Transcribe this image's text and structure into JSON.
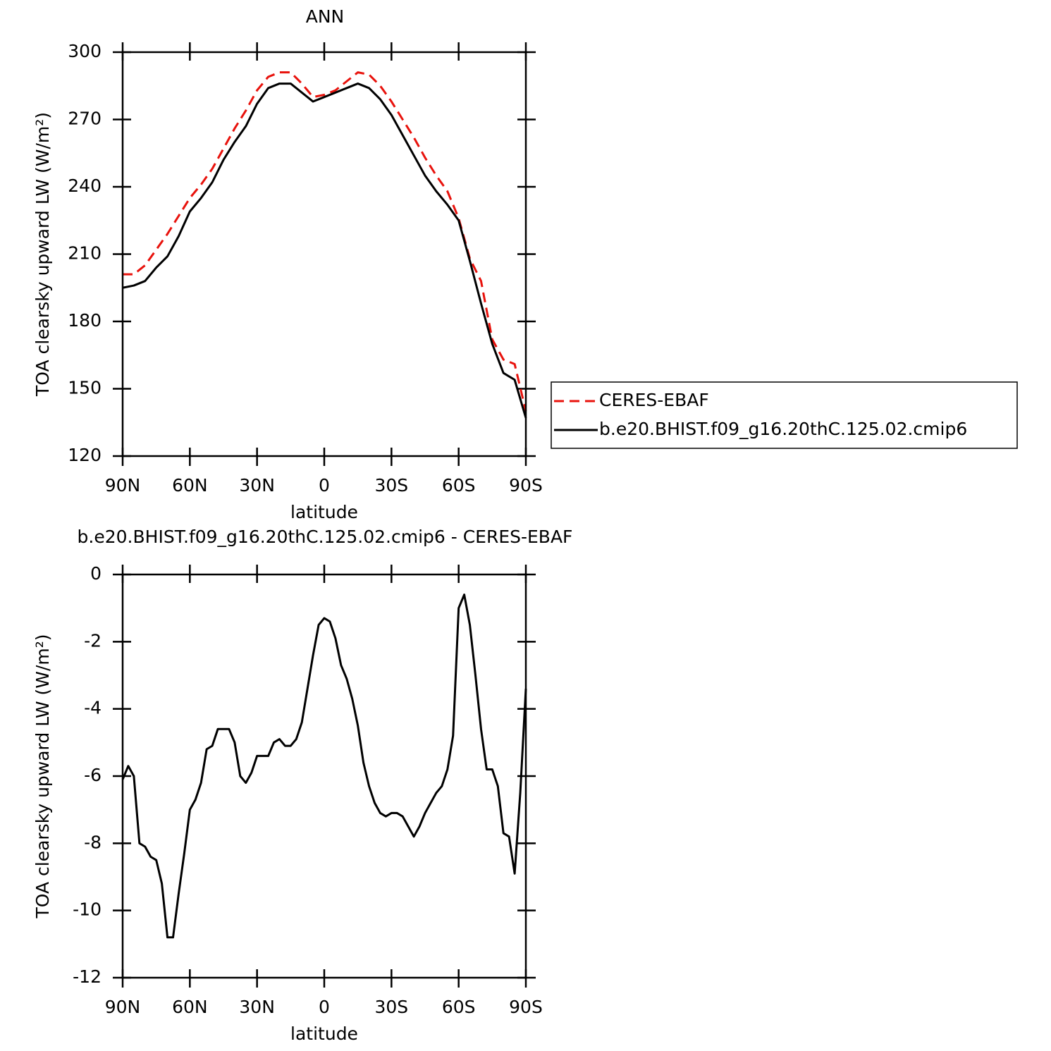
{
  "chart_data": [
    {
      "type": "line",
      "title": "ANN",
      "xlabel": "latitude",
      "ylabel": "TOA clearsky upward LW (W/m²)",
      "x": [
        90,
        85,
        80,
        75,
        70,
        65,
        60,
        55,
        50,
        45,
        40,
        35,
        30,
        25,
        20,
        15,
        10,
        5,
        0,
        -5,
        -10,
        -15,
        -20,
        -25,
        -30,
        -35,
        -40,
        -45,
        -50,
        -55,
        -60,
        -65,
        -70,
        -75,
        -80,
        -85,
        -90
      ],
      "series": [
        {
          "name": "CERES-EBAF",
          "color": "#e8120c",
          "dashed": true,
          "values": [
            201,
            201,
            205,
            212,
            219,
            227,
            235,
            241,
            248,
            257,
            266,
            274,
            283,
            289,
            291,
            291,
            286,
            280,
            281,
            283,
            287,
            291,
            290,
            285,
            278,
            270,
            262,
            253,
            245,
            238,
            226,
            208,
            198,
            172,
            163,
            161,
            140
          ]
        },
        {
          "name": "b.e20.BHIST.f09_g16.20thC.125.02.cmip6",
          "color": "#000000",
          "dashed": false,
          "values": [
            195,
            196,
            198,
            204,
            209,
            218,
            229,
            235,
            242,
            252,
            260,
            267,
            277,
            284,
            286,
            286,
            282,
            278,
            280,
            282,
            284,
            286,
            284,
            279,
            272,
            263,
            254,
            245,
            238,
            232,
            225,
            207,
            188,
            170,
            157,
            154,
            137
          ]
        }
      ],
      "xlim": [
        90,
        -90
      ],
      "xticks": [
        {
          "value": 90,
          "label": "90N"
        },
        {
          "value": 60,
          "label": "60N"
        },
        {
          "value": 30,
          "label": "30N"
        },
        0,
        {
          "value": -30,
          "label": "30S"
        },
        {
          "value": -60,
          "label": "60S"
        },
        {
          "value": -90,
          "label": "90S"
        }
      ],
      "ylim": [
        120,
        300
      ],
      "yticks": [
        120,
        150,
        180,
        210,
        240,
        270,
        300
      ],
      "legend": "right"
    },
    {
      "type": "line",
      "title": "b.e20.BHIST.f09_g16.20thC.125.02.cmip6 - CERES-EBAF",
      "xlabel": "latitude",
      "ylabel": "TOA clearsky upward LW (W/m²)",
      "x": [
        90,
        87.5,
        85,
        82.5,
        80,
        77.5,
        75,
        72.5,
        70,
        67.5,
        65,
        62.5,
        60,
        57.5,
        55,
        52.5,
        50,
        47.5,
        45,
        42.5,
        40,
        37.5,
        35,
        32.5,
        30,
        27.5,
        25,
        22.5,
        20,
        17.5,
        15,
        12.5,
        10,
        7.5,
        5,
        2.5,
        0,
        -2.5,
        -5,
        -7.5,
        -10,
        -12.5,
        -15,
        -17.5,
        -20,
        -22.5,
        -25,
        -27.5,
        -30,
        -32.5,
        -35,
        -37.5,
        -40,
        -42.5,
        -45,
        -47.5,
        -50,
        -52.5,
        -55,
        -57.5,
        -60,
        -62.5,
        -65,
        -67.5,
        -70,
        -72.5,
        -75,
        -77.5,
        -80,
        -82.5,
        -85,
        -87.5,
        -90
      ],
      "color": "#000000",
      "values": [
        -6.1,
        -5.7,
        -6.0,
        -8.0,
        -8.1,
        -8.4,
        -8.5,
        -9.2,
        -10.8,
        -10.8,
        -9.5,
        -8.3,
        -7.0,
        -6.7,
        -6.2,
        -5.2,
        -5.1,
        -4.6,
        -4.6,
        -4.6,
        -5.0,
        -6.0,
        -6.2,
        -5.9,
        -5.4,
        -5.4,
        -5.4,
        -5.0,
        -4.9,
        -5.1,
        -5.1,
        -4.9,
        -4.4,
        -3.4,
        -2.4,
        -1.5,
        -1.3,
        -1.4,
        -1.9,
        -2.7,
        -3.1,
        -3.7,
        -4.5,
        -5.6,
        -6.3,
        -6.8,
        -7.1,
        -7.2,
        -7.1,
        -7.1,
        -7.2,
        -7.5,
        -7.8,
        -7.5,
        -7.1,
        -6.8,
        -6.5,
        -6.3,
        -5.8,
        -4.8,
        -1.0,
        -0.6,
        -1.5,
        -3.0,
        -4.6,
        -5.8,
        -5.8,
        -6.3,
        -7.7,
        -7.8,
        -8.9,
        -6.5,
        -3.4
      ],
      "xlim": [
        90,
        -90
      ],
      "xticks": [
        {
          "value": 90,
          "label": "90N"
        },
        {
          "value": 60,
          "label": "60N"
        },
        {
          "value": 30,
          "label": "30N"
        },
        0,
        {
          "value": -30,
          "label": "30S"
        },
        {
          "value": -60,
          "label": "60S"
        },
        {
          "value": -90,
          "label": "90S"
        }
      ],
      "ylim": [
        -12,
        0
      ],
      "yticks": [
        -12,
        -10,
        -8,
        -6,
        -4,
        -2,
        0
      ]
    }
  ]
}
